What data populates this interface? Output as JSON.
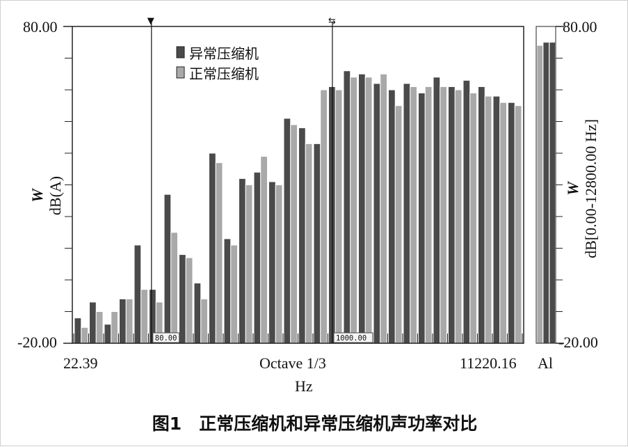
{
  "chart_data": {
    "type": "bar",
    "y_range": [
      -20.0,
      80.0
    ],
    "y_top_label": "80.00",
    "y_bottom_label": "-20.00",
    "ylabel_var": "W",
    "ylabel_unit": "dB(A)",
    "right_ylabel_var": "W",
    "right_ylabel_unit": "dB[0.00-12800.00 Hz]",
    "right_y_top_label": "80.00",
    "right_y_bottom_label": "-20.00",
    "x_left_label": "22.39",
    "x_center_label": "Octave  1/3",
    "x_right_label": "11220.16",
    "x_unit_label": "Hz",
    "al_label": "Al",
    "cursor1_label": "80.00",
    "cursor1_marker": "▼",
    "cursor2_label": "1000.00",
    "cursor2_marker": "⇆",
    "series": [
      {
        "name": "异常压缩机",
        "color": "#4a4a4a",
        "values": [
          -12,
          -7,
          -14,
          -6,
          11,
          -3,
          27,
          8,
          -1,
          40,
          13,
          32,
          34,
          31,
          51,
          48,
          43,
          61,
          66,
          65,
          62,
          60,
          62,
          59,
          64,
          61,
          63,
          61,
          58,
          56
        ]
      },
      {
        "name": "正常压缩机",
        "color": "#a9a9a9",
        "values": [
          -15,
          -10,
          -10,
          -6,
          -3,
          -7,
          15,
          7,
          -6,
          37,
          11,
          30,
          39,
          30,
          49,
          43,
          60,
          60,
          64,
          64,
          65,
          55,
          61,
          61,
          61,
          60,
          59,
          58,
          56,
          55
        ]
      }
    ],
    "al_values": [
      74,
      75,
      75
    ],
    "legend_position": "top-left",
    "grid": false
  },
  "caption": "图1　正常压缩机和异常压缩机声功率对比"
}
